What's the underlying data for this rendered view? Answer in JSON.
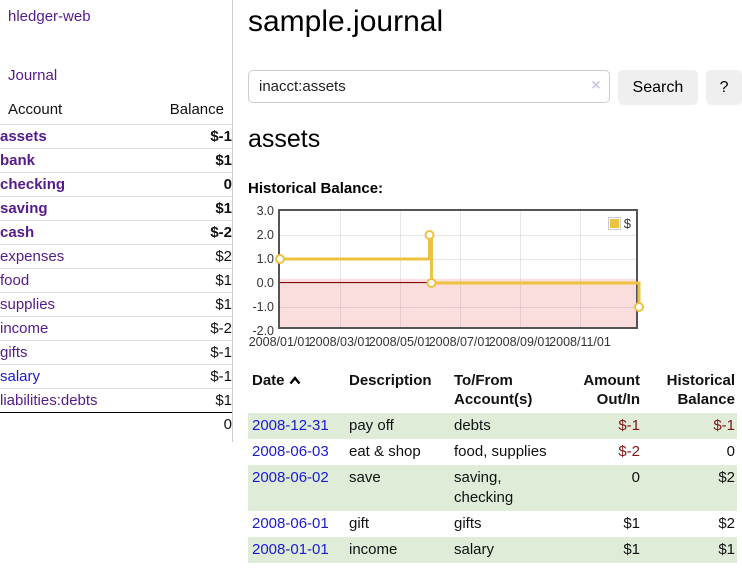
{
  "app": {
    "brand": "hledger-web",
    "nav_journal": "Journal"
  },
  "sidebar": {
    "header": {
      "account": "Account",
      "balance": "Balance"
    },
    "accounts": [
      {
        "name": "assets",
        "balance": "$-1",
        "indent": 1,
        "bold": true,
        "neg": "strong",
        "link": "purple"
      },
      {
        "name": "bank",
        "balance": "$1",
        "indent": 2,
        "bold": true,
        "neg": "none",
        "link": "purple"
      },
      {
        "name": "checking",
        "balance": "0",
        "indent": 3,
        "bold": true,
        "neg": "none",
        "link": "purple"
      },
      {
        "name": "saving",
        "balance": "$1",
        "indent": 3,
        "bold": true,
        "neg": "none",
        "link": "purple"
      },
      {
        "name": "cash",
        "balance": "$-2",
        "indent": 2,
        "bold": true,
        "neg": "strong",
        "link": "purple"
      },
      {
        "name": "expenses",
        "balance": "$2",
        "indent": 1,
        "bold": false,
        "neg": "none",
        "link": "purple"
      },
      {
        "name": "food",
        "balance": "$1",
        "indent": 2,
        "bold": false,
        "neg": "none",
        "link": "purple"
      },
      {
        "name": "supplies",
        "balance": "$1",
        "indent": 2,
        "bold": false,
        "neg": "none",
        "link": "purple"
      },
      {
        "name": "income",
        "balance": "$-2",
        "indent": 1,
        "bold": false,
        "neg": "soft",
        "link": "purple"
      },
      {
        "name": "gifts",
        "balance": "$-1",
        "indent": 2,
        "bold": false,
        "neg": "soft",
        "link": "purple"
      },
      {
        "name": "salary",
        "balance": "$-1",
        "indent": 2,
        "bold": false,
        "neg": "soft",
        "link": "blue"
      },
      {
        "name": "liabilities:debts",
        "balance": "$1",
        "indent": 1,
        "bold": false,
        "neg": "none",
        "link": "purple"
      }
    ],
    "total": "0"
  },
  "main": {
    "title": "sample.journal",
    "search": {
      "value": "inacct:assets",
      "clear_icon": "×",
      "button_label": "Search",
      "help_label": "?"
    },
    "account_heading": "assets",
    "chart_label": "Historical Balance:"
  },
  "chart_data": {
    "type": "line",
    "title": "Historical Balance",
    "step": true,
    "series": [
      {
        "name": "$",
        "color": "#edc240",
        "points": [
          [
            "2008-01-01",
            1
          ],
          [
            "2008-06-01",
            2
          ],
          [
            "2008-06-03",
            0
          ],
          [
            "2008-12-31",
            -1
          ]
        ]
      }
    ],
    "x_range": [
      "2008-01-01",
      "2009-01-01"
    ],
    "x_ticks": [
      "2008/01/01",
      "2008/03/01",
      "2008/05/01",
      "2008/07/01",
      "2008/09/01",
      "2008/11/01"
    ],
    "y_ticks": [
      "3.0",
      "2.0",
      "1.0",
      "0.0",
      "-1.0",
      "-2.0"
    ],
    "ylim": [
      -2,
      3
    ],
    "legend_position": "top-right",
    "grid": true,
    "negative_region_color": "#f8d8d8",
    "zero_line_color": "#8b0000"
  },
  "register": {
    "headers": {
      "date": "Date",
      "description": "Description",
      "accounts": "To/From Account(s)",
      "amount": "Amount Out/In",
      "balance": "Historical Balance"
    },
    "rows": [
      {
        "date": "2008-12-31",
        "description": "pay off",
        "accounts": "debts",
        "amount": "$-1",
        "amount_neg": true,
        "balance": "$-1",
        "balance_neg": true,
        "shaded": true
      },
      {
        "date": "2008-06-03",
        "description": "eat & shop",
        "accounts": "food, supplies",
        "amount": "$-2",
        "amount_neg": true,
        "balance": "0",
        "balance_neg": false,
        "shaded": false
      },
      {
        "date": "2008-06-02",
        "description": "save",
        "accounts": "saving, checking",
        "amount": "0",
        "amount_neg": false,
        "balance": "$2",
        "balance_neg": false,
        "shaded": true
      },
      {
        "date": "2008-06-01",
        "description": "gift",
        "accounts": "gifts",
        "amount": "$1",
        "amount_neg": false,
        "balance": "$2",
        "balance_neg": false,
        "shaded": false
      },
      {
        "date": "2008-01-01",
        "description": "income",
        "accounts": "salary",
        "amount": "$1",
        "amount_neg": false,
        "balance": "$1",
        "balance_neg": false,
        "shaded": true
      }
    ]
  }
}
